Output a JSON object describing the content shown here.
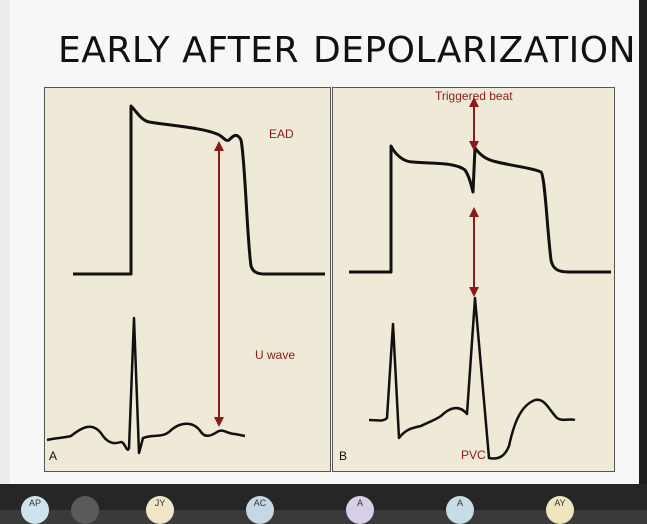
{
  "slide": {
    "title_left": "EARLY AFTER",
    "title_right": "DEPOLARIZATION"
  },
  "panel_a": {
    "letter": "A",
    "label_ead": "EAD",
    "label_uwave": "U wave"
  },
  "panel_b": {
    "letter": "B",
    "label_triggered": "Triggered beat",
    "label_pvc": "PVC"
  },
  "colors": {
    "panel_bg": "#efe9d8",
    "trace": "#111111",
    "arrow": "#8b1a1a",
    "label": "#8b1a1a"
  },
  "participants": [
    {
      "initials": "AP",
      "color": "#cfe3ec"
    },
    {
      "initials": "",
      "color": "#5a5a5a"
    },
    {
      "initials": "JY",
      "color": "#efe6c8"
    },
    {
      "initials": "AC",
      "color": "#c6d8e6"
    },
    {
      "initials": "A",
      "color": "#d7cfe6"
    },
    {
      "initials": "A",
      "color": "#c6dde6"
    },
    {
      "initials": "AY",
      "color": "#efe6c0"
    }
  ]
}
